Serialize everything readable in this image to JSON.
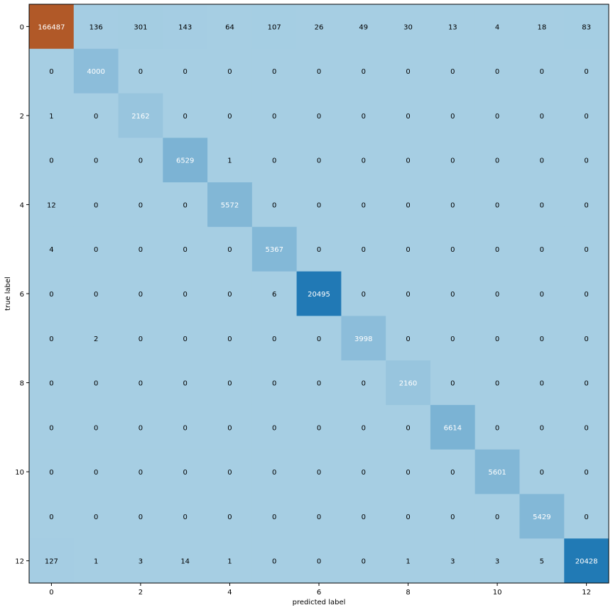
{
  "chart_data": {
    "type": "heatmap",
    "title": "",
    "xlabel": "predicted label",
    "ylabel": "true label",
    "x_ticks": [
      "0",
      "2",
      "4",
      "6",
      "8",
      "10",
      "12"
    ],
    "y_ticks": [
      "0",
      "2",
      "4",
      "6",
      "8",
      "10",
      "12"
    ],
    "matrix": [
      [
        166487,
        136,
        301,
        143,
        64,
        107,
        26,
        49,
        30,
        13,
        4,
        18,
        83
      ],
      [
        0,
        4000,
        0,
        0,
        0,
        0,
        0,
        0,
        0,
        0,
        0,
        0,
        0
      ],
      [
        1,
        0,
        2162,
        0,
        0,
        0,
        0,
        0,
        0,
        0,
        0,
        0,
        0
      ],
      [
        0,
        0,
        0,
        6529,
        1,
        0,
        0,
        0,
        0,
        0,
        0,
        0,
        0
      ],
      [
        12,
        0,
        0,
        0,
        5572,
        0,
        0,
        0,
        0,
        0,
        0,
        0,
        0
      ],
      [
        4,
        0,
        0,
        0,
        0,
        5367,
        0,
        0,
        0,
        0,
        0,
        0,
        0
      ],
      [
        0,
        0,
        0,
        0,
        0,
        6,
        20495,
        0,
        0,
        0,
        0,
        0,
        0
      ],
      [
        0,
        2,
        0,
        0,
        0,
        0,
        0,
        3998,
        0,
        0,
        0,
        0,
        0
      ],
      [
        0,
        0,
        0,
        0,
        0,
        0,
        0,
        0,
        2160,
        0,
        0,
        0,
        0
      ],
      [
        0,
        0,
        0,
        0,
        0,
        0,
        0,
        0,
        0,
        6614,
        0,
        0,
        0
      ],
      [
        0,
        0,
        0,
        0,
        0,
        0,
        0,
        0,
        0,
        0,
        5601,
        0,
        0
      ],
      [
        0,
        0,
        0,
        0,
        0,
        0,
        0,
        0,
        0,
        0,
        0,
        5429,
        0
      ],
      [
        127,
        1,
        3,
        14,
        1,
        0,
        0,
        0,
        1,
        3,
        3,
        5,
        20428
      ]
    ],
    "colors": {
      "low": "#a6cee3",
      "mid": "#1f78b4",
      "high": "#b15928"
    },
    "grid": false,
    "colorbar": false
  }
}
